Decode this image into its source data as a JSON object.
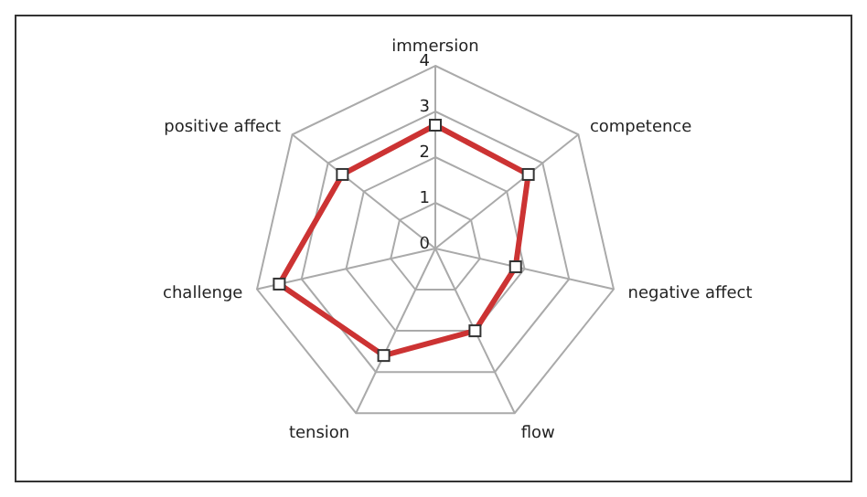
{
  "chart_data": {
    "type": "radar",
    "categories": [
      "immersion",
      "competence",
      "negative affect",
      "flow",
      "tension",
      "challenge",
      "positive affect"
    ],
    "series": [
      {
        "color": "#cc3333",
        "values": [
          2.7,
          2.6,
          1.8,
          2.0,
          2.6,
          3.5,
          2.6
        ]
      }
    ],
    "ylim": [
      0,
      4
    ],
    "yticks": [
      0,
      1,
      2,
      3,
      4
    ],
    "grid": true,
    "marker": "square"
  }
}
